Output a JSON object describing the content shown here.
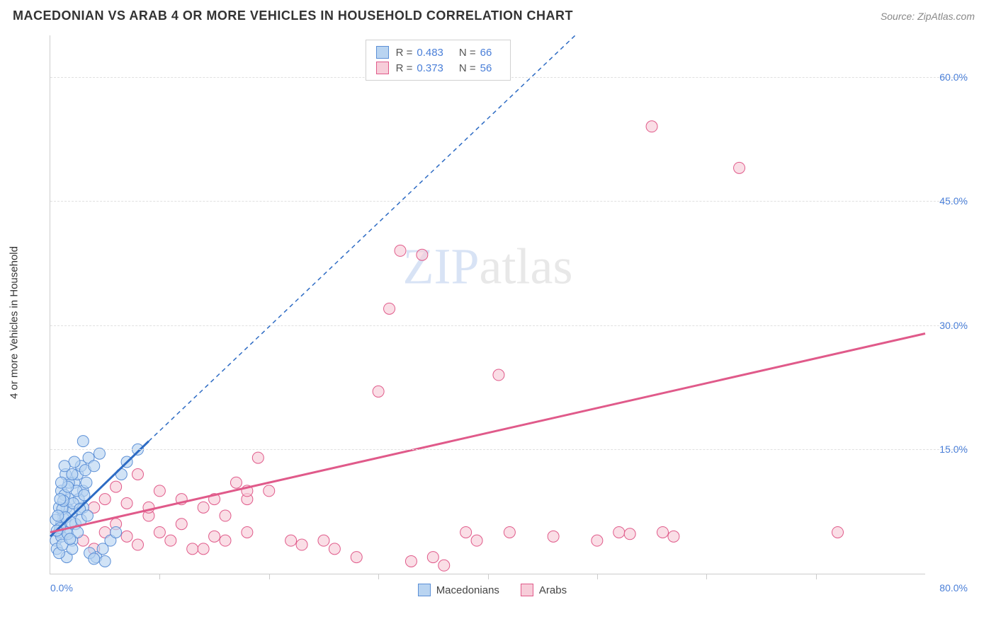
{
  "header": {
    "title": "MACEDONIAN VS ARAB 4 OR MORE VEHICLES IN HOUSEHOLD CORRELATION CHART",
    "source": "Source: ZipAtlas.com"
  },
  "chart": {
    "type": "scatter",
    "y_axis_label": "4 or more Vehicles in Household",
    "xlim": [
      0,
      80
    ],
    "ylim": [
      0,
      65
    ],
    "x_origin_label": "0.0%",
    "x_max_label": "80.0%",
    "y_ticks": [
      {
        "v": 15,
        "label": "15.0%"
      },
      {
        "v": 30,
        "label": "30.0%"
      },
      {
        "v": 45,
        "label": "45.0%"
      },
      {
        "v": 60,
        "label": "60.0%"
      }
    ],
    "x_ticks_minor": [
      10,
      20,
      30,
      40,
      50,
      60,
      70
    ],
    "watermark": {
      "zip": "ZIP",
      "atlas": "atlas"
    },
    "colors": {
      "series1_fill": "#b9d4f1",
      "series1_stroke": "#5b8fd6",
      "series2_fill": "#f7cdd9",
      "series2_stroke": "#e05a8a",
      "regression1": "#2d6bc4",
      "regression2": "#e05a8a",
      "grid": "#e0e0e0",
      "axis": "#cccccc",
      "tick_text": "#4a7fd8"
    },
    "marker_radius": 8,
    "marker_opacity": 0.65,
    "legend_top": {
      "rows": [
        {
          "swatch": 1,
          "r_label": "R =",
          "r": "0.483",
          "n_label": "N =",
          "n": "66"
        },
        {
          "swatch": 2,
          "r_label": "R =",
          "r": "0.373",
          "n_label": "N =",
          "n": "56"
        }
      ]
    },
    "legend_bottom": [
      {
        "swatch": 1,
        "label": "Macedonians"
      },
      {
        "swatch": 2,
        "label": "Arabs"
      }
    ],
    "regression_lines": {
      "series1": {
        "x1": 0,
        "y1": 4.5,
        "x2": 9,
        "y2": 16,
        "dash": false,
        "extend_x2": 48,
        "extend_y2": 65
      },
      "series2": {
        "x1": 0,
        "y1": 5,
        "x2": 80,
        "y2": 29,
        "dash": false
      }
    },
    "series1_points": [
      [
        0.5,
        4
      ],
      [
        0.8,
        5
      ],
      [
        1,
        6
      ],
      [
        1.2,
        7
      ],
      [
        0.6,
        3
      ],
      [
        1.5,
        8
      ],
      [
        1.8,
        9
      ],
      [
        2,
        7.5
      ],
      [
        1,
        10
      ],
      [
        2.2,
        11
      ],
      [
        2.5,
        12
      ],
      [
        2.8,
        13
      ],
      [
        1.5,
        5
      ],
      [
        3,
        10
      ],
      [
        3.2,
        12.5
      ],
      [
        3.5,
        14
      ],
      [
        2,
        4
      ],
      [
        0.8,
        8
      ],
      [
        1.3,
        9.5
      ],
      [
        4,
        13
      ],
      [
        4.5,
        14.5
      ],
      [
        1,
        4.5
      ],
      [
        2.3,
        6
      ],
      [
        3,
        8
      ],
      [
        1.7,
        11
      ],
      [
        0.5,
        6.5
      ],
      [
        1.1,
        7.8
      ],
      [
        2.6,
        9
      ],
      [
        0.9,
        5.5
      ],
      [
        1.4,
        6.8
      ],
      [
        2.1,
        8.5
      ],
      [
        3.3,
        11
      ],
      [
        1.6,
        4.8
      ],
      [
        0.7,
        7
      ],
      [
        2.4,
        10
      ],
      [
        1.9,
        6.2
      ],
      [
        2.7,
        7.8
      ],
      [
        3.1,
        9.5
      ],
      [
        0.6,
        5.2
      ],
      [
        1.2,
        8.8
      ],
      [
        2.8,
        6.5
      ],
      [
        4.2,
        2
      ],
      [
        5,
        1.5
      ],
      [
        4.8,
        3
      ],
      [
        3.6,
        2.5
      ],
      [
        5.5,
        4
      ],
      [
        6,
        5
      ],
      [
        4,
        1.8
      ],
      [
        1.5,
        2
      ],
      [
        2,
        3
      ],
      [
        0.8,
        2.5
      ],
      [
        1.1,
        3.5
      ],
      [
        8,
        15
      ],
      [
        3,
        16
      ],
      [
        1.4,
        12
      ],
      [
        2.2,
        13.5
      ],
      [
        0.9,
        9
      ],
      [
        1.6,
        10.5
      ],
      [
        2.5,
        5
      ],
      [
        3.4,
        7
      ],
      [
        1.8,
        4.2
      ],
      [
        6.5,
        12
      ],
      [
        7,
        13.5
      ],
      [
        1,
        11
      ],
      [
        2,
        12
      ],
      [
        1.3,
        13
      ]
    ],
    "series2_points": [
      [
        3,
        4
      ],
      [
        4,
        3
      ],
      [
        5,
        5
      ],
      [
        6,
        6
      ],
      [
        7,
        4.5
      ],
      [
        8,
        3.5
      ],
      [
        9,
        7
      ],
      [
        10,
        5
      ],
      [
        11,
        4
      ],
      [
        12,
        6
      ],
      [
        13,
        3
      ],
      [
        14,
        8
      ],
      [
        15,
        4.5
      ],
      [
        16,
        7
      ],
      [
        17,
        11
      ],
      [
        18,
        5
      ],
      [
        18,
        9
      ],
      [
        18,
        10
      ],
      [
        20,
        10
      ],
      [
        22,
        4
      ],
      [
        23,
        3.5
      ],
      [
        25,
        4
      ],
      [
        26,
        3
      ],
      [
        28,
        2
      ],
      [
        30,
        22
      ],
      [
        31,
        32
      ],
      [
        32,
        39
      ],
      [
        33,
        1.5
      ],
      [
        34,
        38.5
      ],
      [
        35,
        2
      ],
      [
        36,
        1
      ],
      [
        38,
        5
      ],
      [
        39,
        4
      ],
      [
        41,
        24
      ],
      [
        42,
        5
      ],
      [
        46,
        4.5
      ],
      [
        50,
        4
      ],
      [
        52,
        5
      ],
      [
        53,
        4.8
      ],
      [
        55,
        54
      ],
      [
        56,
        5
      ],
      [
        57,
        4.5
      ],
      [
        63,
        49
      ],
      [
        72,
        5
      ],
      [
        4,
        8
      ],
      [
        5,
        9
      ],
      [
        6,
        10.5
      ],
      [
        7,
        8.5
      ],
      [
        8,
        12
      ],
      [
        9,
        8
      ],
      [
        10,
        10
      ],
      [
        12,
        9
      ],
      [
        14,
        3
      ],
      [
        15,
        9
      ],
      [
        16,
        4
      ],
      [
        19,
        14
      ]
    ]
  }
}
